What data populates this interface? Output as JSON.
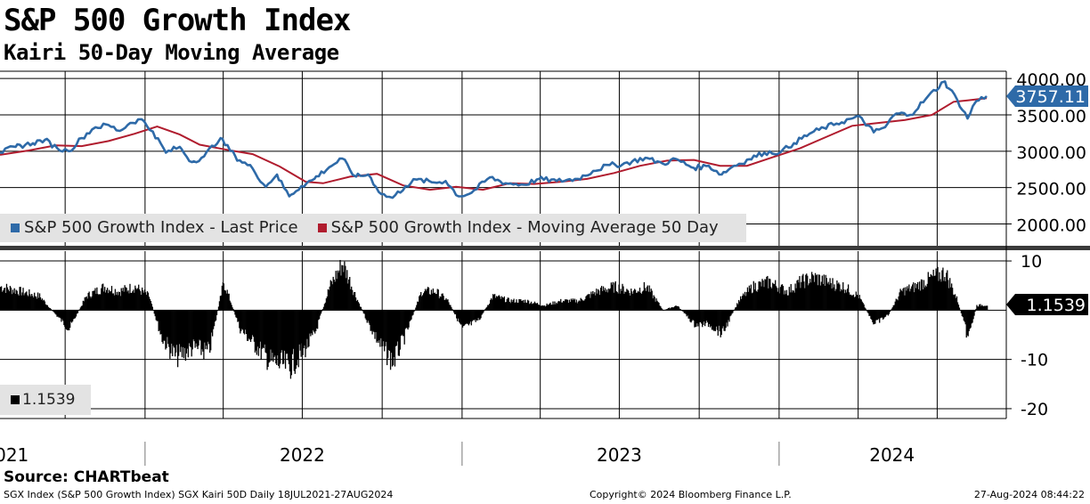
{
  "header": {
    "title": "S&P 500 Growth Index",
    "subtitle": "Kairi 50-Day Moving Average"
  },
  "footer": {
    "source": "Source: CHARTbeat",
    "ticker_info": "SGX Index (S&P 500 Growth Index) SGX Kairi 50D  Daily 18JUL2021-27AUG2024",
    "copyright": "Copyright© 2024 Bloomberg Finance L.P.",
    "timestamp": "27-Aug-2024 08:44:22"
  },
  "colors": {
    "price": "#2e6aa8",
    "ma": "#b01c2e",
    "bars": "#000000",
    "price_tag": "#2e6aa8",
    "kairi_tag": "#000000"
  },
  "chart_data": [
    {
      "type": "line",
      "x_labels": [
        "2021",
        "2022",
        "2023",
        "2024"
      ],
      "x_range": [
        "2021-07-18",
        "2024-08-27"
      ],
      "ylim": [
        1700,
        4100
      ],
      "y_ticks": [
        "4000.00",
        "3500.00",
        "3000.00",
        "2500.00",
        "2000.00"
      ],
      "y_tick_values": [
        4000,
        3500,
        3000,
        2500,
        2000
      ],
      "last_value_label": "3757.11",
      "legend": [
        {
          "label": "S&P 500 Growth Index - Last Price",
          "color": "#2e6aa8"
        },
        {
          "label": "S&P 500 Growth Index - Moving Average 50 Day",
          "color": "#b01c2e"
        }
      ],
      "series": [
        {
          "name": "S&P 500 Growth Index - Last Price",
          "points": [
            [
              "2021-07-18",
              2980
            ],
            [
              "2021-08-05",
              3060
            ],
            [
              "2021-08-25",
              3110
            ],
            [
              "2021-09-08",
              3160
            ],
            [
              "2021-09-22",
              3040
            ],
            [
              "2021-10-05",
              3000
            ],
            [
              "2021-10-20",
              3180
            ],
            [
              "2021-11-05",
              3330
            ],
            [
              "2021-11-20",
              3360
            ],
            [
              "2021-12-03",
              3280
            ],
            [
              "2021-12-15",
              3390
            ],
            [
              "2021-12-28",
              3440
            ],
            [
              "2022-01-10",
              3270
            ],
            [
              "2022-01-25",
              2980
            ],
            [
              "2022-02-10",
              3060
            ],
            [
              "2022-02-24",
              2850
            ],
            [
              "2022-03-10",
              2930
            ],
            [
              "2022-03-29",
              3180
            ],
            [
              "2022-04-15",
              2930
            ],
            [
              "2022-05-05",
              2760
            ],
            [
              "2022-05-20",
              2510
            ],
            [
              "2022-06-02",
              2680
            ],
            [
              "2022-06-16",
              2380
            ],
            [
              "2022-06-30",
              2520
            ],
            [
              "2022-07-15",
              2620
            ],
            [
              "2022-08-01",
              2780
            ],
            [
              "2022-08-16",
              2900
            ],
            [
              "2022-09-01",
              2650
            ],
            [
              "2022-09-15",
              2680
            ],
            [
              "2022-09-30",
              2410
            ],
            [
              "2022-10-13",
              2360
            ],
            [
              "2022-10-28",
              2520
            ],
            [
              "2022-11-10",
              2610
            ],
            [
              "2022-11-30",
              2570
            ],
            [
              "2022-12-13",
              2590
            ],
            [
              "2022-12-28",
              2380
            ],
            [
              "2023-01-12",
              2430
            ],
            [
              "2023-02-02",
              2640
            ],
            [
              "2023-02-20",
              2560
            ],
            [
              "2023-03-13",
              2540
            ],
            [
              "2023-03-31",
              2620
            ],
            [
              "2023-04-20",
              2590
            ],
            [
              "2023-05-15",
              2620
            ],
            [
              "2023-06-01",
              2730
            ],
            [
              "2023-06-20",
              2810
            ],
            [
              "2023-07-05",
              2820
            ],
            [
              "2023-07-31",
              2910
            ],
            [
              "2023-08-20",
              2830
            ],
            [
              "2023-09-05",
              2890
            ],
            [
              "2023-09-25",
              2770
            ],
            [
              "2023-10-12",
              2800
            ],
            [
              "2023-10-27",
              2680
            ],
            [
              "2023-11-10",
              2800
            ],
            [
              "2023-11-28",
              2890
            ],
            [
              "2023-12-15",
              2980
            ],
            [
              "2024-01-03",
              2990
            ],
            [
              "2024-01-18",
              3110
            ],
            [
              "2024-02-05",
              3240
            ],
            [
              "2024-02-22",
              3320
            ],
            [
              "2024-03-07",
              3380
            ],
            [
              "2024-03-25",
              3450
            ],
            [
              "2024-04-05",
              3460
            ],
            [
              "2024-04-19",
              3260
            ],
            [
              "2024-05-02",
              3330
            ],
            [
              "2024-05-15",
              3520
            ],
            [
              "2024-05-31",
              3500
            ],
            [
              "2024-06-18",
              3720
            ],
            [
              "2024-07-10",
              3960
            ],
            [
              "2024-07-24",
              3710
            ],
            [
              "2024-08-05",
              3450
            ],
            [
              "2024-08-15",
              3690
            ],
            [
              "2024-08-27",
              3757
            ]
          ]
        },
        {
          "name": "S&P 500 Growth Index - Moving Average 50 Day",
          "points": [
            [
              "2021-07-18",
              2950
            ],
            [
              "2021-08-20",
              3010
            ],
            [
              "2021-09-20",
              3080
            ],
            [
              "2021-10-20",
              3070
            ],
            [
              "2021-11-20",
              3140
            ],
            [
              "2021-12-20",
              3240
            ],
            [
              "2022-01-15",
              3340
            ],
            [
              "2022-02-10",
              3230
            ],
            [
              "2022-03-05",
              3090
            ],
            [
              "2022-04-05",
              3020
            ],
            [
              "2022-05-05",
              2960
            ],
            [
              "2022-06-05",
              2790
            ],
            [
              "2022-07-05",
              2580
            ],
            [
              "2022-07-25",
              2560
            ],
            [
              "2022-08-25",
              2650
            ],
            [
              "2022-09-25",
              2690
            ],
            [
              "2022-10-25",
              2530
            ],
            [
              "2022-11-25",
              2470
            ],
            [
              "2022-12-25",
              2510
            ],
            [
              "2023-01-25",
              2470
            ],
            [
              "2023-02-25",
              2560
            ],
            [
              "2023-03-25",
              2550
            ],
            [
              "2023-04-25",
              2580
            ],
            [
              "2023-05-25",
              2620
            ],
            [
              "2023-06-25",
              2700
            ],
            [
              "2023-07-25",
              2800
            ],
            [
              "2023-08-25",
              2870
            ],
            [
              "2023-09-25",
              2880
            ],
            [
              "2023-10-25",
              2800
            ],
            [
              "2023-11-25",
              2800
            ],
            [
              "2023-12-25",
              2920
            ],
            [
              "2024-01-25",
              3040
            ],
            [
              "2024-02-25",
              3200
            ],
            [
              "2024-03-25",
              3350
            ],
            [
              "2024-04-25",
              3390
            ],
            [
              "2024-05-25",
              3430
            ],
            [
              "2024-06-25",
              3500
            ],
            [
              "2024-07-20",
              3680
            ],
            [
              "2024-08-05",
              3700
            ],
            [
              "2024-08-27",
              3730
            ]
          ]
        }
      ]
    },
    {
      "type": "bar",
      "series_name": "SGX Kairi 50D",
      "ylim": [
        -22,
        12
      ],
      "y_ticks": [
        "10",
        "-10",
        "-20"
      ],
      "y_tick_values": [
        10,
        -10,
        -20
      ],
      "last_value_label": "1.1539",
      "legend_value": "1.1539",
      "points": [
        [
          "2021-07-18",
          5
        ],
        [
          "2021-08-10",
          4
        ],
        [
          "2021-09-01",
          3
        ],
        [
          "2021-09-20",
          -1
        ],
        [
          "2021-10-05",
          -4
        ],
        [
          "2021-10-25",
          3
        ],
        [
          "2021-11-15",
          5
        ],
        [
          "2021-12-01",
          4
        ],
        [
          "2021-12-20",
          5
        ],
        [
          "2022-01-05",
          3
        ],
        [
          "2022-01-20",
          -6
        ],
        [
          "2022-02-05",
          -10
        ],
        [
          "2022-02-25",
          -8
        ],
        [
          "2022-03-15",
          -9
        ],
        [
          "2022-04-01",
          6
        ],
        [
          "2022-04-20",
          -4
        ],
        [
          "2022-05-10",
          -8
        ],
        [
          "2022-05-25",
          -11
        ],
        [
          "2022-06-16",
          -12
        ],
        [
          "2022-07-01",
          -9
        ],
        [
          "2022-07-15",
          -5
        ],
        [
          "2022-08-01",
          5
        ],
        [
          "2022-08-16",
          10
        ],
        [
          "2022-08-31",
          3
        ],
        [
          "2022-09-15",
          -3
        ],
        [
          "2022-09-30",
          -8
        ],
        [
          "2022-10-13",
          -11
        ],
        [
          "2022-10-28",
          -5
        ],
        [
          "2022-11-15",
          4
        ],
        [
          "2022-12-01",
          4
        ],
        [
          "2022-12-15",
          2
        ],
        [
          "2023-01-01",
          -4
        ],
        [
          "2023-01-20",
          -2
        ],
        [
          "2023-02-05",
          3
        ],
        [
          "2023-02-25",
          2
        ],
        [
          "2023-03-15",
          2
        ],
        [
          "2023-04-05",
          1
        ],
        [
          "2023-04-25",
          2
        ],
        [
          "2023-05-15",
          2
        ],
        [
          "2023-06-05",
          4
        ],
        [
          "2023-06-25",
          5
        ],
        [
          "2023-07-15",
          4
        ],
        [
          "2023-08-01",
          5
        ],
        [
          "2023-08-20",
          0
        ],
        [
          "2023-09-05",
          1
        ],
        [
          "2023-09-25",
          -3
        ],
        [
          "2023-10-12",
          -3
        ],
        [
          "2023-10-27",
          -5
        ],
        [
          "2023-11-15",
          2
        ],
        [
          "2023-12-01",
          5
        ],
        [
          "2023-12-20",
          6
        ],
        [
          "2024-01-10",
          4
        ],
        [
          "2024-01-25",
          6
        ],
        [
          "2024-02-10",
          7
        ],
        [
          "2024-02-25",
          6
        ],
        [
          "2024-03-15",
          5
        ],
        [
          "2024-04-01",
          3
        ],
        [
          "2024-04-19",
          -3
        ],
        [
          "2024-05-05",
          -1
        ],
        [
          "2024-05-20",
          4
        ],
        [
          "2024-06-05",
          5
        ],
        [
          "2024-06-25",
          7
        ],
        [
          "2024-07-10",
          8
        ],
        [
          "2024-07-24",
          2
        ],
        [
          "2024-08-05",
          -6
        ],
        [
          "2024-08-15",
          1
        ],
        [
          "2024-08-27",
          1.15
        ]
      ]
    }
  ]
}
